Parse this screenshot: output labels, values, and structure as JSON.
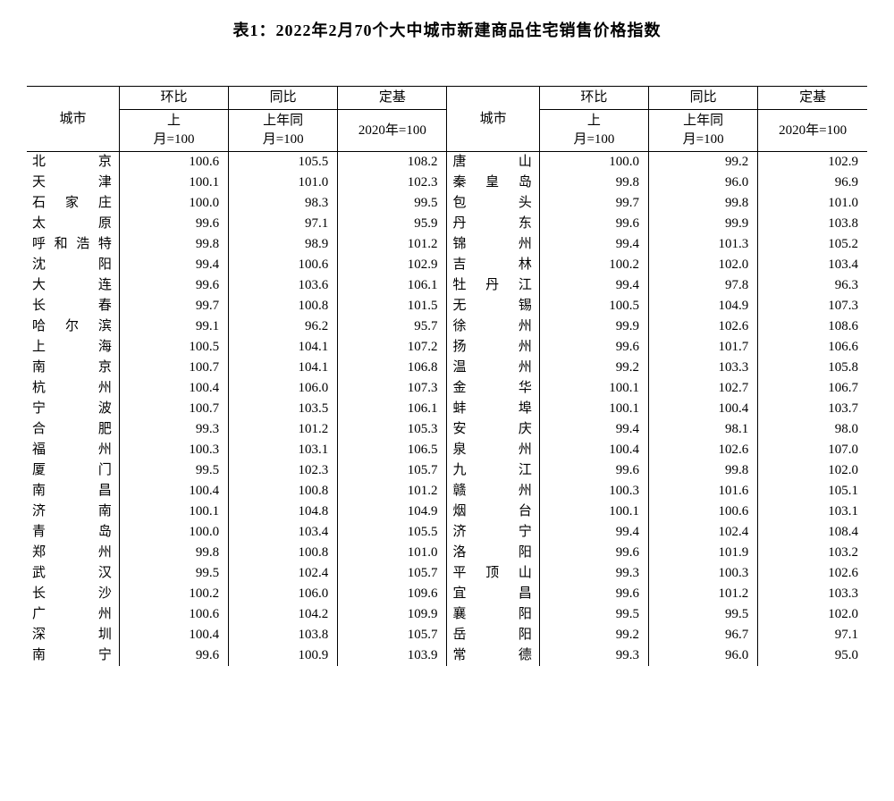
{
  "title": "表1：2022年2月70个大中城市新建商品住宅销售价格指数",
  "headers": {
    "city": "城市",
    "mom": "环比",
    "yoy": "同比",
    "base": "定基",
    "mom_sub": "上月=100",
    "yoy_sub": "上年同月=100",
    "base_sub": "2020年=100"
  },
  "table": {
    "type": "table",
    "font_family": "SimSun",
    "text_color": "#000000",
    "background_color": "#ffffff",
    "border_color": "#000000",
    "header_fontsize": 15,
    "body_fontsize": 15,
    "title_fontsize": 18,
    "column_alignment": [
      "justify",
      "right",
      "right",
      "right",
      "justify",
      "right",
      "right",
      "right"
    ]
  },
  "rows": [
    {
      "l": {
        "city": "北　　京",
        "mom": "100.6",
        "yoy": "105.5",
        "base": "108.2"
      },
      "r": {
        "city": "唐　　山",
        "mom": "100.0",
        "yoy": "99.2",
        "base": "102.9"
      }
    },
    {
      "l": {
        "city": "天　　津",
        "mom": "100.1",
        "yoy": "101.0",
        "base": "102.3"
      },
      "r": {
        "city": "秦 皇 岛",
        "mom": "99.8",
        "yoy": "96.0",
        "base": "96.9"
      }
    },
    {
      "l": {
        "city": "石 家 庄",
        "mom": "100.0",
        "yoy": "98.3",
        "base": "99.5"
      },
      "r": {
        "city": "包　　头",
        "mom": "99.7",
        "yoy": "99.8",
        "base": "101.0"
      }
    },
    {
      "l": {
        "city": "太　　原",
        "mom": "99.6",
        "yoy": "97.1",
        "base": "95.9"
      },
      "r": {
        "city": "丹　　东",
        "mom": "99.6",
        "yoy": "99.9",
        "base": "103.8"
      }
    },
    {
      "l": {
        "city": "呼和浩特",
        "mom": "99.8",
        "yoy": "98.9",
        "base": "101.2"
      },
      "r": {
        "city": "锦　　州",
        "mom": "99.4",
        "yoy": "101.3",
        "base": "105.2"
      }
    },
    {
      "l": {
        "city": "沈　　阳",
        "mom": "99.4",
        "yoy": "100.6",
        "base": "102.9"
      },
      "r": {
        "city": "吉　　林",
        "mom": "100.2",
        "yoy": "102.0",
        "base": "103.4"
      }
    },
    {
      "l": {
        "city": "大　　连",
        "mom": "99.6",
        "yoy": "103.6",
        "base": "106.1"
      },
      "r": {
        "city": "牡 丹 江",
        "mom": "99.4",
        "yoy": "97.8",
        "base": "96.3"
      }
    },
    {
      "l": {
        "city": "长　　春",
        "mom": "99.7",
        "yoy": "100.8",
        "base": "101.5"
      },
      "r": {
        "city": "无　　锡",
        "mom": "100.5",
        "yoy": "104.9",
        "base": "107.3"
      }
    },
    {
      "l": {
        "city": "哈 尔 滨",
        "mom": "99.1",
        "yoy": "96.2",
        "base": "95.7"
      },
      "r": {
        "city": "徐　　州",
        "mom": "99.9",
        "yoy": "102.6",
        "base": "108.6"
      }
    },
    {
      "l": {
        "city": "上　　海",
        "mom": "100.5",
        "yoy": "104.1",
        "base": "107.2"
      },
      "r": {
        "city": "扬　　州",
        "mom": "99.6",
        "yoy": "101.7",
        "base": "106.6"
      }
    },
    {
      "l": {
        "city": "南　　京",
        "mom": "100.7",
        "yoy": "104.1",
        "base": "106.8"
      },
      "r": {
        "city": "温　　州",
        "mom": "99.2",
        "yoy": "103.3",
        "base": "105.8"
      }
    },
    {
      "l": {
        "city": "杭　　州",
        "mom": "100.4",
        "yoy": "106.0",
        "base": "107.3"
      },
      "r": {
        "city": "金　　华",
        "mom": "100.1",
        "yoy": "102.7",
        "base": "106.7"
      }
    },
    {
      "l": {
        "city": "宁　　波",
        "mom": "100.7",
        "yoy": "103.5",
        "base": "106.1"
      },
      "r": {
        "city": "蚌　　埠",
        "mom": "100.1",
        "yoy": "100.4",
        "base": "103.7"
      }
    },
    {
      "l": {
        "city": "合　　肥",
        "mom": "99.3",
        "yoy": "101.2",
        "base": "105.3"
      },
      "r": {
        "city": "安　　庆",
        "mom": "99.4",
        "yoy": "98.1",
        "base": "98.0"
      }
    },
    {
      "l": {
        "city": "福　　州",
        "mom": "100.3",
        "yoy": "103.1",
        "base": "106.5"
      },
      "r": {
        "city": "泉　　州",
        "mom": "100.4",
        "yoy": "102.6",
        "base": "107.0"
      }
    },
    {
      "l": {
        "city": "厦　　门",
        "mom": "99.5",
        "yoy": "102.3",
        "base": "105.7"
      },
      "r": {
        "city": "九　　江",
        "mom": "99.6",
        "yoy": "99.8",
        "base": "102.0"
      }
    },
    {
      "l": {
        "city": "南　　昌",
        "mom": "100.4",
        "yoy": "100.8",
        "base": "101.2"
      },
      "r": {
        "city": "赣　　州",
        "mom": "100.3",
        "yoy": "101.6",
        "base": "105.1"
      }
    },
    {
      "l": {
        "city": "济　　南",
        "mom": "100.1",
        "yoy": "104.8",
        "base": "104.9"
      },
      "r": {
        "city": "烟　　台",
        "mom": "100.1",
        "yoy": "100.6",
        "base": "103.1"
      }
    },
    {
      "l": {
        "city": "青　　岛",
        "mom": "100.0",
        "yoy": "103.4",
        "base": "105.5"
      },
      "r": {
        "city": "济　　宁",
        "mom": "99.4",
        "yoy": "102.4",
        "base": "108.4"
      }
    },
    {
      "l": {
        "city": "郑　　州",
        "mom": "99.8",
        "yoy": "100.8",
        "base": "101.0"
      },
      "r": {
        "city": "洛　　阳",
        "mom": "99.6",
        "yoy": "101.9",
        "base": "103.2"
      }
    },
    {
      "l": {
        "city": "武　　汉",
        "mom": "99.5",
        "yoy": "102.4",
        "base": "105.7"
      },
      "r": {
        "city": "平 顶 山",
        "mom": "99.3",
        "yoy": "100.3",
        "base": "102.6"
      }
    },
    {
      "l": {
        "city": "长　　沙",
        "mom": "100.2",
        "yoy": "106.0",
        "base": "109.6"
      },
      "r": {
        "city": "宜　　昌",
        "mom": "99.6",
        "yoy": "101.2",
        "base": "103.3"
      }
    },
    {
      "l": {
        "city": "广　　州",
        "mom": "100.6",
        "yoy": "104.2",
        "base": "109.9"
      },
      "r": {
        "city": "襄　　阳",
        "mom": "99.5",
        "yoy": "99.5",
        "base": "102.0"
      }
    },
    {
      "l": {
        "city": "深　　圳",
        "mom": "100.4",
        "yoy": "103.8",
        "base": "105.7"
      },
      "r": {
        "city": "岳　　阳",
        "mom": "99.2",
        "yoy": "96.7",
        "base": "97.1"
      }
    },
    {
      "l": {
        "city": "南　　宁",
        "mom": "99.6",
        "yoy": "100.9",
        "base": "103.9"
      },
      "r": {
        "city": "常　　德",
        "mom": "99.3",
        "yoy": "96.0",
        "base": "95.0"
      }
    }
  ]
}
